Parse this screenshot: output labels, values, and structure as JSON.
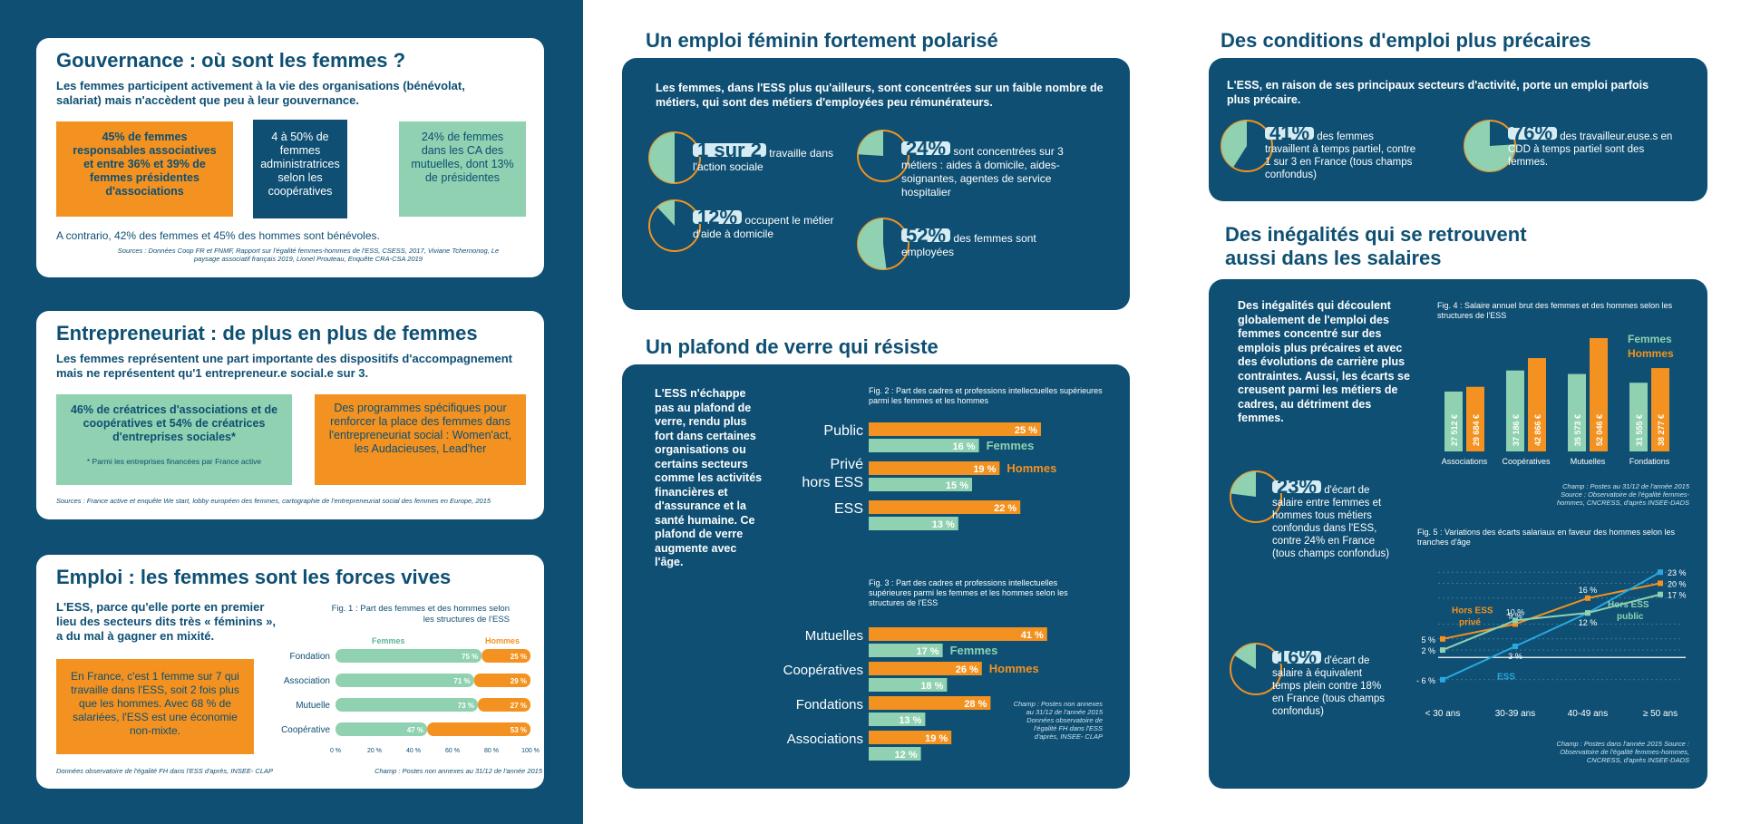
{
  "gov": {
    "title": "Gouvernance : où sont les femmes ?",
    "subtitle": "Les femmes participent activement à la vie des organisations (bénévolat, salariat) mais n'accèdent que peu à leur gouvernance.",
    "box1": "45% de femmes responsables associatives et entre 36% et 39% de femmes présidentes d'associations",
    "box2": "4 à 50% de femmes administratrices selon les coopératives",
    "box3": "24% de femmes dans les CA des mutuelles, dont 13% de présidentes",
    "contrario": "A contrario, 42% des femmes et 45% des hommes sont bénévoles.",
    "sources": "Sources : Données Coop FR et FNMF, Rapport sur l'égalité femmes-hommes de l'ESS, CSESS, 2017, Viviane Tchernonog, Le paysage associatif français 2019, Lionel Prouteau, Enquête CRA-CSA 2019"
  },
  "entre": {
    "title": "Entrepreneuriat : de plus en plus de femmes",
    "subtitle": "Les femmes représentent une part importante des dispositifs d'accompagnement mais ne représentent qu'1 entrepreneur.e social.e sur 3.",
    "box1": "46% de créatrices d'associations et de coopératives et 54% de créatrices d'entreprises sociales*",
    "box1_note": "* Parmi les entreprises financées par France active",
    "box2": "Des programmes spécifiques pour renforcer la place des femmes dans l'entrepreneuriat social : Women'act, les Audacieuses, Lead'her",
    "sources": "Sources : France active et enquête We start, lobby européen des femmes, cartographie de l'entrepreneuriat social des femmes en Europe, 2015"
  },
  "emploi": {
    "title": "Emploi : les femmes sont les forces vives",
    "subtitle": "L'ESS, parce qu'elle porte en premier lieu des secteurs dits très « féminins », a du mal à gagner en mixité.",
    "box": "En France, c'est 1 femme sur 7 qui travaille dans l'ESS, soit 2 fois plus que les hommes. Avec 68 % de salariées, l'ESS est une économie non-mixte.",
    "fig_title": "Fig. 1 : Part des femmes et des hommes selon les structures de l'ESS",
    "legend_f": "Femmes",
    "legend_h": "Hommes",
    "source_left": "Données observatoire de l'égalité FH dans l'ESS d'après, INSEE- CLAP",
    "champ": "Champ : Postes non annexes au 31/12 de l'année 2015"
  },
  "chart_data": [
    {
      "type": "bar",
      "title": "Fig. 1 : Part des femmes et des hommes selon les structures de l'ESS",
      "categories": [
        "Fondation",
        "Association",
        "Mutuelle",
        "Coopérative"
      ],
      "series": [
        {
          "name": "Femmes",
          "values": [
            75,
            71,
            73,
            47
          ]
        },
        {
          "name": "Hommes",
          "values": [
            25,
            29,
            27,
            53
          ]
        }
      ],
      "ticks": [
        "0 %",
        "20 %",
        "40 %",
        "60 %",
        "80 %",
        "100 %"
      ],
      "xlim": [
        0,
        100
      ],
      "colors": [
        "#8fd1b0",
        "#f39220"
      ]
    },
    {
      "type": "bar",
      "title": "Fig. 2 : Part des cadres et professions intellectuelles supérieures parmi les femmes et les hommes",
      "categories": [
        "Public",
        "Privé hors ESS",
        "ESS"
      ],
      "series": [
        {
          "name": "Hommes",
          "values": [
            25,
            19,
            22
          ]
        },
        {
          "name": "Femmes",
          "values": [
            16,
            15,
            13
          ]
        }
      ],
      "colors": [
        "#f39220",
        "#8fd1b0"
      ]
    },
    {
      "type": "bar",
      "title": "Fig. 3 : Part des cadres et professions intellectuelles supérieures parmi les femmes et les hommes selon les structures de l'ESS",
      "categories": [
        "Mutuelles",
        "Coopératives",
        "Fondations",
        "Associations"
      ],
      "series": [
        {
          "name": "Hommes",
          "values": [
            41,
            26,
            28,
            19
          ]
        },
        {
          "name": "Femmes",
          "values": [
            17,
            18,
            13,
            12
          ]
        }
      ],
      "colors": [
        "#f39220",
        "#8fd1b0"
      ]
    },
    {
      "type": "bar",
      "title": "Fig. 4 : Salaire annuel brut des femmes et des hommes selon les structures de l'ESS",
      "categories": [
        "Associations",
        "Coopératives",
        "Mutuelles",
        "Fondations"
      ],
      "series": [
        {
          "name": "Femmes",
          "values": [
            27512,
            37186,
            35573,
            31555
          ],
          "labels": [
            "27 512 €",
            "37 186 €",
            "35 573 €",
            "31 555 €"
          ]
        },
        {
          "name": "Hommes",
          "values": [
            29684,
            42866,
            52046,
            38277
          ],
          "labels": [
            "29 684 €",
            "42 866 €",
            "52 046 €",
            "38 277 €"
          ]
        }
      ],
      "colors": [
        "#8fd1b0",
        "#f39220"
      ]
    },
    {
      "type": "line",
      "title": "Fig. 5 : Variations des écarts salariaux en faveur des hommes selon les tranches d'âge",
      "categories": [
        "< 30 ans",
        "30-39 ans",
        "40-49 ans",
        "≥ 50 ans"
      ],
      "series": [
        {
          "name": "Hors ESS privé",
          "values": [
            5,
            9,
            16,
            20
          ],
          "labels": [
            "5 %",
            "9 %",
            "16 %",
            "20 %"
          ],
          "color": "#f39220"
        },
        {
          "name": "ESS",
          "values": [
            -6,
            3,
            12,
            23
          ],
          "labels": [
            "- 6 %",
            "3 %",
            "12 %",
            "23 %"
          ],
          "color": "#2aa7df"
        },
        {
          "name": "Hors ESS public",
          "values": [
            2,
            10,
            12,
            17
          ],
          "labels": [
            "2 %",
            "10 %",
            "",
            "17 %"
          ],
          "color": "#8fd1b0"
        }
      ],
      "ylim": [
        -8,
        25
      ]
    }
  ],
  "polar": {
    "title": "Un emploi féminin fortement polarisé",
    "intro": "Les femmes, dans l'ESS plus qu'ailleurs, sont concentrées sur un faible nombre de métiers, qui sont des métiers d'employées peu rémunérateurs.",
    "s1_val": "1 sur 2",
    "s1_txt": "travaille dans l'action sociale",
    "s2_val": "24%",
    "s2_txt": "sont concentrées sur 3 métiers : aides à domicile, aides-soignantes, agentes de service hospitalier",
    "s3_val": "12%",
    "s3_txt": "occupent le métier d'aide à domicile",
    "s4_val": "52%",
    "s4_txt": "des femmes sont employées"
  },
  "plafond": {
    "title": "Un plafond de verre qui résiste",
    "text": "L'ESS n'échappe pas au plafond de verre, rendu plus fort dans certaines organisations ou certains secteurs comme les activités financières et d'assurance et la santé humaine. Ce plafond de verre augmente avec l'âge.",
    "fig2_title": "Fig. 2 : Part des cadres et professions intellectuelles supérieures parmi les femmes et les hommes",
    "fig3_title": "Fig. 3 : Part des cadres et professions intellectuelles supérieures parmi les femmes et les hommes selon les structures de l'ESS",
    "legend_h": "Hommes",
    "legend_f": "Femmes",
    "champ": "Champ : Postes non annexes au 31/12 de l'année 2015 Données observatoire de l'égalité FH dans l'ESS d'après, INSEE- CLAP"
  },
  "prec": {
    "title": "Des conditions d'emploi plus précaires",
    "intro": "L'ESS, en raison de ses principaux secteurs d'activité, porte un emploi parfois plus précaire.",
    "s1_val": "41%",
    "s1_txt": "des femmes travaillent à temps partiel, contre 1 sur 3 en France (tous champs confondus)",
    "s2_val": "76%",
    "s2_txt": "des travailleur.euse.s en CDD à temps partiel sont des femmes."
  },
  "sal": {
    "title": "Des inégalités qui se retrouvent aussi dans les salaires",
    "text": "Des inégalités qui découlent globalement de l'emploi des femmes concentré sur des emplois plus précaires et avec des évolutions de carrière plus contraintes. Aussi, les écarts se creusent parmi les métiers de cadres, au détriment des femmes.",
    "s1_val": "23%",
    "s1_txt": "d'écart de salaire entre femmes et hommes tous métiers confondus dans l'ESS, contre 24% en France (tous champs confondus)",
    "s2_val": "16%",
    "s2_txt": "d'écart de salaire à équivalent temps plein contre 18% en France (tous champs confondus)",
    "fig4_title": "Fig. 4 : Salaire annuel brut des femmes et des hommes selon les structures de l'ESS",
    "fig4_legend_f": "Femmes",
    "fig4_legend_h": "Hommes",
    "fig4_source": "Champ : Postes au 31/12 de l'année 2015 Source : Observatoire de l'égalité femmes-hommes, CNCRESS, d'après INSEE-DADS",
    "fig5_title": "Fig. 5 : Variations des écarts salariaux en faveur des hommes selon les tranches d'âge",
    "fig5_source": "Champ : Postes dans l'année 2015 Source : Observatoire de l'égalité femmes-hommes, CNCRESS, d'après INSEE-DADS"
  }
}
